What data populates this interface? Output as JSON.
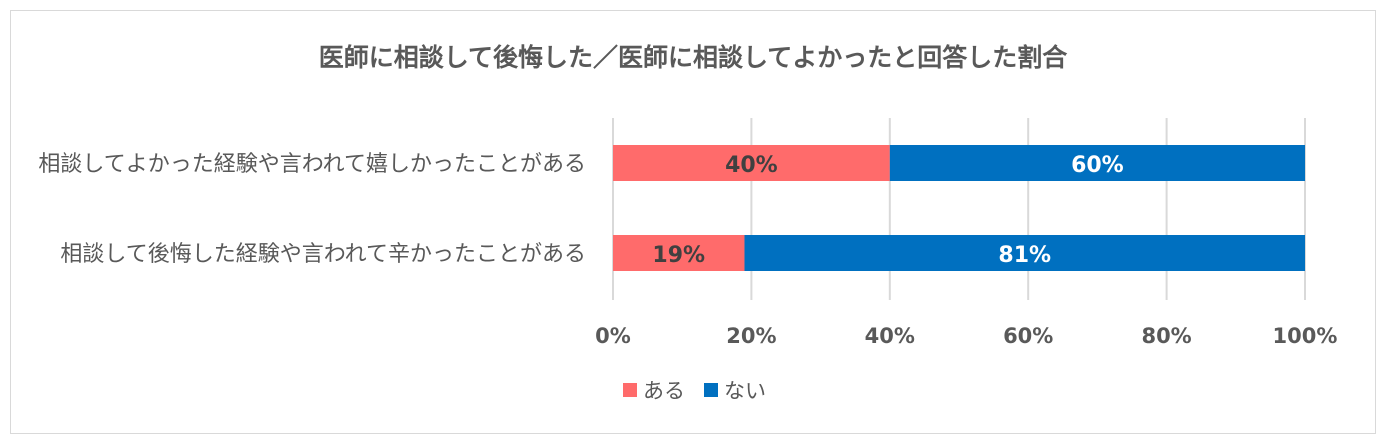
{
  "chart_data": {
    "type": "bar",
    "orientation": "horizontal",
    "stacked": "percent",
    "title": "医師に相談して後悔した／医師に相談してよかったと回答した割合",
    "categories": [
      "相談してよかった経験や言われて嬉しかったことがある",
      "相談して後悔した経験や言われて辛かったことがある"
    ],
    "series": [
      {
        "name": "ある",
        "color": "#ff6b6b",
        "values": [
          40,
          19
        ],
        "labels": [
          "40%",
          "19%"
        ],
        "label_color": "#404040"
      },
      {
        "name": "ない",
        "color": "#0070c0",
        "values": [
          60,
          81
        ],
        "labels": [
          "60%",
          "81%"
        ],
        "label_color": "#ffffff"
      }
    ],
    "xlim": [
      0,
      100
    ],
    "xticks": [
      "0%",
      "20%",
      "40%",
      "60%",
      "80%",
      "100%"
    ],
    "grid": true,
    "legend": "bottom"
  }
}
